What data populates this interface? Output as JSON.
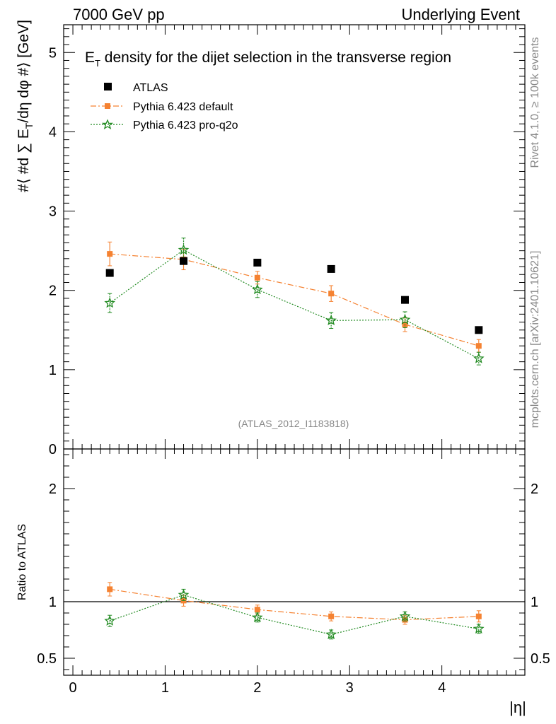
{
  "header": {
    "left": "7000 GeV pp",
    "right": "Underlying Event"
  },
  "side": {
    "rivet": "Rivet 4.1.0, ≥ 100k events",
    "source": "mcplots.cern.ch [arXiv:2401.10621]"
  },
  "chart_data": {
    "type": "scatter",
    "title": "E_T density  for the dijet selection in the transverse region",
    "title_main": "E",
    "title_sub": "T",
    "title_rest": " density  for the dijet selection in the transverse region",
    "watermark": "(ATLAS_2012_I1183818)",
    "xlabel": "|η|",
    "ylabel": "#⟨ #frac{d ∑ E_T}{dη dφ} #⟩ [GeV]",
    "ratio_ylabel": "Ratio to ATLAS",
    "xlim": [
      -0.1,
      4.9
    ],
    "ylim": [
      0,
      5.35
    ],
    "ratio_ylim": [
      0.35,
      2.35
    ],
    "x_ticks": [
      "0",
      "1",
      "2",
      "3",
      "4"
    ],
    "y_ticks": [
      "1",
      "2",
      "3",
      "4",
      "5"
    ],
    "ratio_y_ticks": [
      "0.5",
      "1",
      "2"
    ],
    "x": [
      0.4,
      1.2,
      2.0,
      2.8,
      3.6,
      4.4
    ],
    "series": [
      {
        "name": "ATLAS",
        "color": "#000000",
        "marker": "square",
        "values": [
          2.22,
          2.37,
          2.35,
          2.27,
          1.88,
          1.5
        ],
        "errors": [
          0.02,
          0.02,
          0.02,
          0.02,
          0.02,
          0.02
        ],
        "ratio": [
          1.0,
          1.0,
          1.0,
          1.0,
          1.0,
          1.0
        ],
        "ratio_errors": [
          0.0,
          0.0,
          0.0,
          0.0,
          0.0,
          0.0
        ]
      },
      {
        "name": "Pythia 6.423 default",
        "color": "#f58231",
        "marker": "square-small",
        "line": "dashdot",
        "values": [
          2.46,
          2.39,
          2.16,
          1.96,
          1.57,
          1.3
        ],
        "errors": [
          0.15,
          0.13,
          0.08,
          0.1,
          0.09,
          0.08
        ],
        "ratio": [
          1.11,
          1.01,
          0.93,
          0.87,
          0.84,
          0.87
        ],
        "ratio_errors": [
          0.06,
          0.05,
          0.04,
          0.04,
          0.04,
          0.05
        ]
      },
      {
        "name": "Pythia 6.423 pro-q2o",
        "color": "#228b22",
        "marker": "star",
        "line": "dotted",
        "values": [
          1.84,
          2.51,
          2.01,
          1.62,
          1.63,
          1.14
        ],
        "errors": [
          0.12,
          0.15,
          0.1,
          0.1,
          0.1,
          0.08
        ],
        "ratio": [
          0.83,
          1.06,
          0.86,
          0.71,
          0.87,
          0.76
        ],
        "ratio_errors": [
          0.05,
          0.05,
          0.04,
          0.04,
          0.04,
          0.04
        ]
      }
    ]
  }
}
